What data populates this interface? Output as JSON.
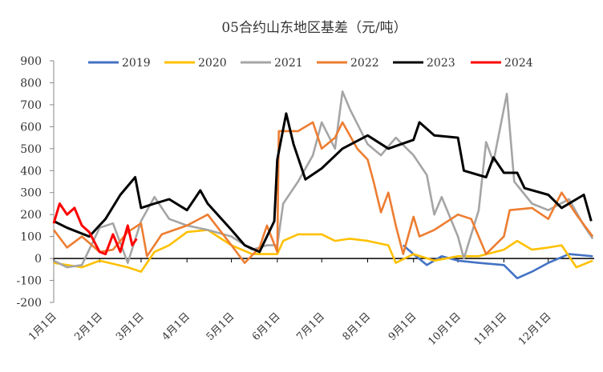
{
  "chart_data": {
    "type": "line",
    "title": "05合约山东地区基差（元/吨）",
    "ylim": [
      -200,
      900
    ],
    "yticks": [
      -200,
      -100,
      0,
      100,
      200,
      300,
      400,
      500,
      600,
      700,
      800,
      900
    ],
    "xticks": [
      "1月1日",
      "2月1日",
      "3月1日",
      "4月1日",
      "5月1日",
      "6月1日",
      "7月1日",
      "8月1日",
      "9月1日",
      "10月1日",
      "11月1日",
      "12月1日"
    ],
    "xtick_dates": [
      "01-01",
      "02-01",
      "03-01",
      "04-01",
      "05-01",
      "06-01",
      "07-01",
      "08-01",
      "09-01",
      "10-01",
      "11-01",
      "12-01"
    ],
    "legend": "top",
    "grid": false,
    "series": [
      {
        "name": "2019",
        "color": "#4472C4",
        "points": [
          [
            "08-25",
            60
          ],
          [
            "09-01",
            20
          ],
          [
            "09-10",
            -30
          ],
          [
            "09-20",
            10
          ],
          [
            "10-01",
            -10
          ],
          [
            "10-15",
            -20
          ],
          [
            "11-01",
            -30
          ],
          [
            "11-10",
            -90
          ],
          [
            "11-20",
            -60
          ],
          [
            "12-01",
            -20
          ],
          [
            "12-15",
            20
          ],
          [
            "12-31",
            10
          ]
        ]
      },
      {
        "name": "2020",
        "color": "#FFC000",
        "points": [
          [
            "01-01",
            -20
          ],
          [
            "01-20",
            -40
          ],
          [
            "02-01",
            -10
          ],
          [
            "02-20",
            -40
          ],
          [
            "03-01",
            -60
          ],
          [
            "03-10",
            30
          ],
          [
            "03-20",
            60
          ],
          [
            "04-01",
            120
          ],
          [
            "04-15",
            130
          ],
          [
            "05-01",
            60
          ],
          [
            "05-15",
            20
          ],
          [
            "06-01",
            20
          ],
          [
            "06-05",
            80
          ],
          [
            "06-15",
            110
          ],
          [
            "07-01",
            110
          ],
          [
            "07-10",
            80
          ],
          [
            "07-20",
            90
          ],
          [
            "08-01",
            80
          ],
          [
            "08-15",
            60
          ],
          [
            "08-20",
            -20
          ],
          [
            "09-01",
            20
          ],
          [
            "09-15",
            -10
          ],
          [
            "10-01",
            10
          ],
          [
            "10-15",
            10
          ],
          [
            "11-01",
            40
          ],
          [
            "11-10",
            80
          ],
          [
            "11-20",
            40
          ],
          [
            "12-01",
            50
          ],
          [
            "12-10",
            60
          ],
          [
            "12-20",
            -40
          ],
          [
            "12-31",
            -10
          ]
        ]
      },
      {
        "name": "2021",
        "color": "#A5A5A5",
        "points": [
          [
            "01-01",
            -10
          ],
          [
            "01-10",
            -40
          ],
          [
            "01-20",
            -30
          ],
          [
            "02-01",
            140
          ],
          [
            "02-10",
            160
          ],
          [
            "02-20",
            -20
          ],
          [
            "03-01",
            170
          ],
          [
            "03-10",
            280
          ],
          [
            "03-20",
            180
          ],
          [
            "04-01",
            150
          ],
          [
            "04-15",
            130
          ],
          [
            "05-01",
            100
          ],
          [
            "05-15",
            40
          ],
          [
            "05-25",
            60
          ],
          [
            "06-01",
            60
          ],
          [
            "06-05",
            250
          ],
          [
            "06-15",
            350
          ],
          [
            "06-25",
            470
          ],
          [
            "07-01",
            620
          ],
          [
            "07-10",
            500
          ],
          [
            "07-15",
            760
          ],
          [
            "07-20",
            680
          ],
          [
            "08-01",
            520
          ],
          [
            "08-10",
            470
          ],
          [
            "08-20",
            550
          ],
          [
            "09-01",
            470
          ],
          [
            "09-10",
            380
          ],
          [
            "09-15",
            200
          ],
          [
            "09-20",
            280
          ],
          [
            "10-01",
            100
          ],
          [
            "10-05",
            0
          ],
          [
            "10-15",
            220
          ],
          [
            "10-20",
            530
          ],
          [
            "10-25",
            440
          ],
          [
            "11-03",
            750
          ],
          [
            "11-08",
            350
          ],
          [
            "11-20",
            250
          ],
          [
            "12-01",
            220
          ],
          [
            "12-15",
            270
          ],
          [
            "12-25",
            150
          ],
          [
            "12-31",
            90
          ]
        ]
      },
      {
        "name": "2022",
        "color": "#ED7D31",
        "points": [
          [
            "01-01",
            130
          ],
          [
            "01-10",
            50
          ],
          [
            "01-20",
            100
          ],
          [
            "02-01",
            30
          ],
          [
            "02-10",
            40
          ],
          [
            "02-20",
            120
          ],
          [
            "03-01",
            160
          ],
          [
            "03-05",
            10
          ],
          [
            "03-15",
            110
          ],
          [
            "04-01",
            150
          ],
          [
            "04-15",
            200
          ],
          [
            "05-01",
            60
          ],
          [
            "05-10",
            -20
          ],
          [
            "05-20",
            50
          ],
          [
            "05-25",
            150
          ],
          [
            "06-01",
            30
          ],
          [
            "06-02",
            580
          ],
          [
            "06-15",
            580
          ],
          [
            "06-25",
            620
          ],
          [
            "07-01",
            500
          ],
          [
            "07-10",
            550
          ],
          [
            "07-15",
            620
          ],
          [
            "07-25",
            500
          ],
          [
            "08-01",
            450
          ],
          [
            "08-05",
            350
          ],
          [
            "08-10",
            210
          ],
          [
            "08-15",
            300
          ],
          [
            "08-20",
            150
          ],
          [
            "08-25",
            20
          ],
          [
            "09-01",
            190
          ],
          [
            "09-05",
            100
          ],
          [
            "09-15",
            130
          ],
          [
            "10-01",
            200
          ],
          [
            "10-10",
            180
          ],
          [
            "10-20",
            20
          ],
          [
            "11-01",
            100
          ],
          [
            "11-05",
            220
          ],
          [
            "11-20",
            230
          ],
          [
            "12-01",
            180
          ],
          [
            "12-10",
            300
          ],
          [
            "12-20",
            200
          ],
          [
            "12-31",
            100
          ]
        ]
      },
      {
        "name": "2023",
        "color": "#000000",
        "points": [
          [
            "01-01",
            170
          ],
          [
            "01-10",
            140
          ],
          [
            "01-25",
            100
          ],
          [
            "02-05",
            180
          ],
          [
            "02-15",
            290
          ],
          [
            "02-25",
            370
          ],
          [
            "03-01",
            230
          ],
          [
            "03-10",
            250
          ],
          [
            "03-20",
            270
          ],
          [
            "04-01",
            220
          ],
          [
            "04-10",
            310
          ],
          [
            "04-15",
            250
          ],
          [
            "05-01",
            130
          ],
          [
            "05-10",
            60
          ],
          [
            "05-20",
            30
          ],
          [
            "05-30",
            170
          ],
          [
            "06-01",
            450
          ],
          [
            "06-07",
            660
          ],
          [
            "06-12",
            520
          ],
          [
            "06-20",
            360
          ],
          [
            "07-01",
            410
          ],
          [
            "07-15",
            500
          ],
          [
            "08-01",
            560
          ],
          [
            "08-15",
            500
          ],
          [
            "09-01",
            540
          ],
          [
            "09-05",
            620
          ],
          [
            "09-15",
            560
          ],
          [
            "10-01",
            550
          ],
          [
            "10-05",
            400
          ],
          [
            "10-20",
            370
          ],
          [
            "10-25",
            460
          ],
          [
            "11-01",
            390
          ],
          [
            "11-10",
            390
          ],
          [
            "11-15",
            320
          ],
          [
            "12-01",
            290
          ],
          [
            "12-10",
            230
          ],
          [
            "12-20",
            270
          ],
          [
            "12-25",
            290
          ],
          [
            "12-30",
            170
          ]
        ]
      },
      {
        "name": "2024",
        "color": "#FF0000",
        "points": [
          [
            "01-01",
            160
          ],
          [
            "01-05",
            250
          ],
          [
            "01-10",
            200
          ],
          [
            "01-15",
            230
          ],
          [
            "01-20",
            150
          ],
          [
            "01-25",
            120
          ],
          [
            "02-01",
            30
          ],
          [
            "02-05",
            20
          ],
          [
            "02-10",
            110
          ],
          [
            "02-15",
            30
          ],
          [
            "02-20",
            150
          ],
          [
            "02-23",
            60
          ],
          [
            "02-26",
            90
          ]
        ]
      }
    ]
  }
}
